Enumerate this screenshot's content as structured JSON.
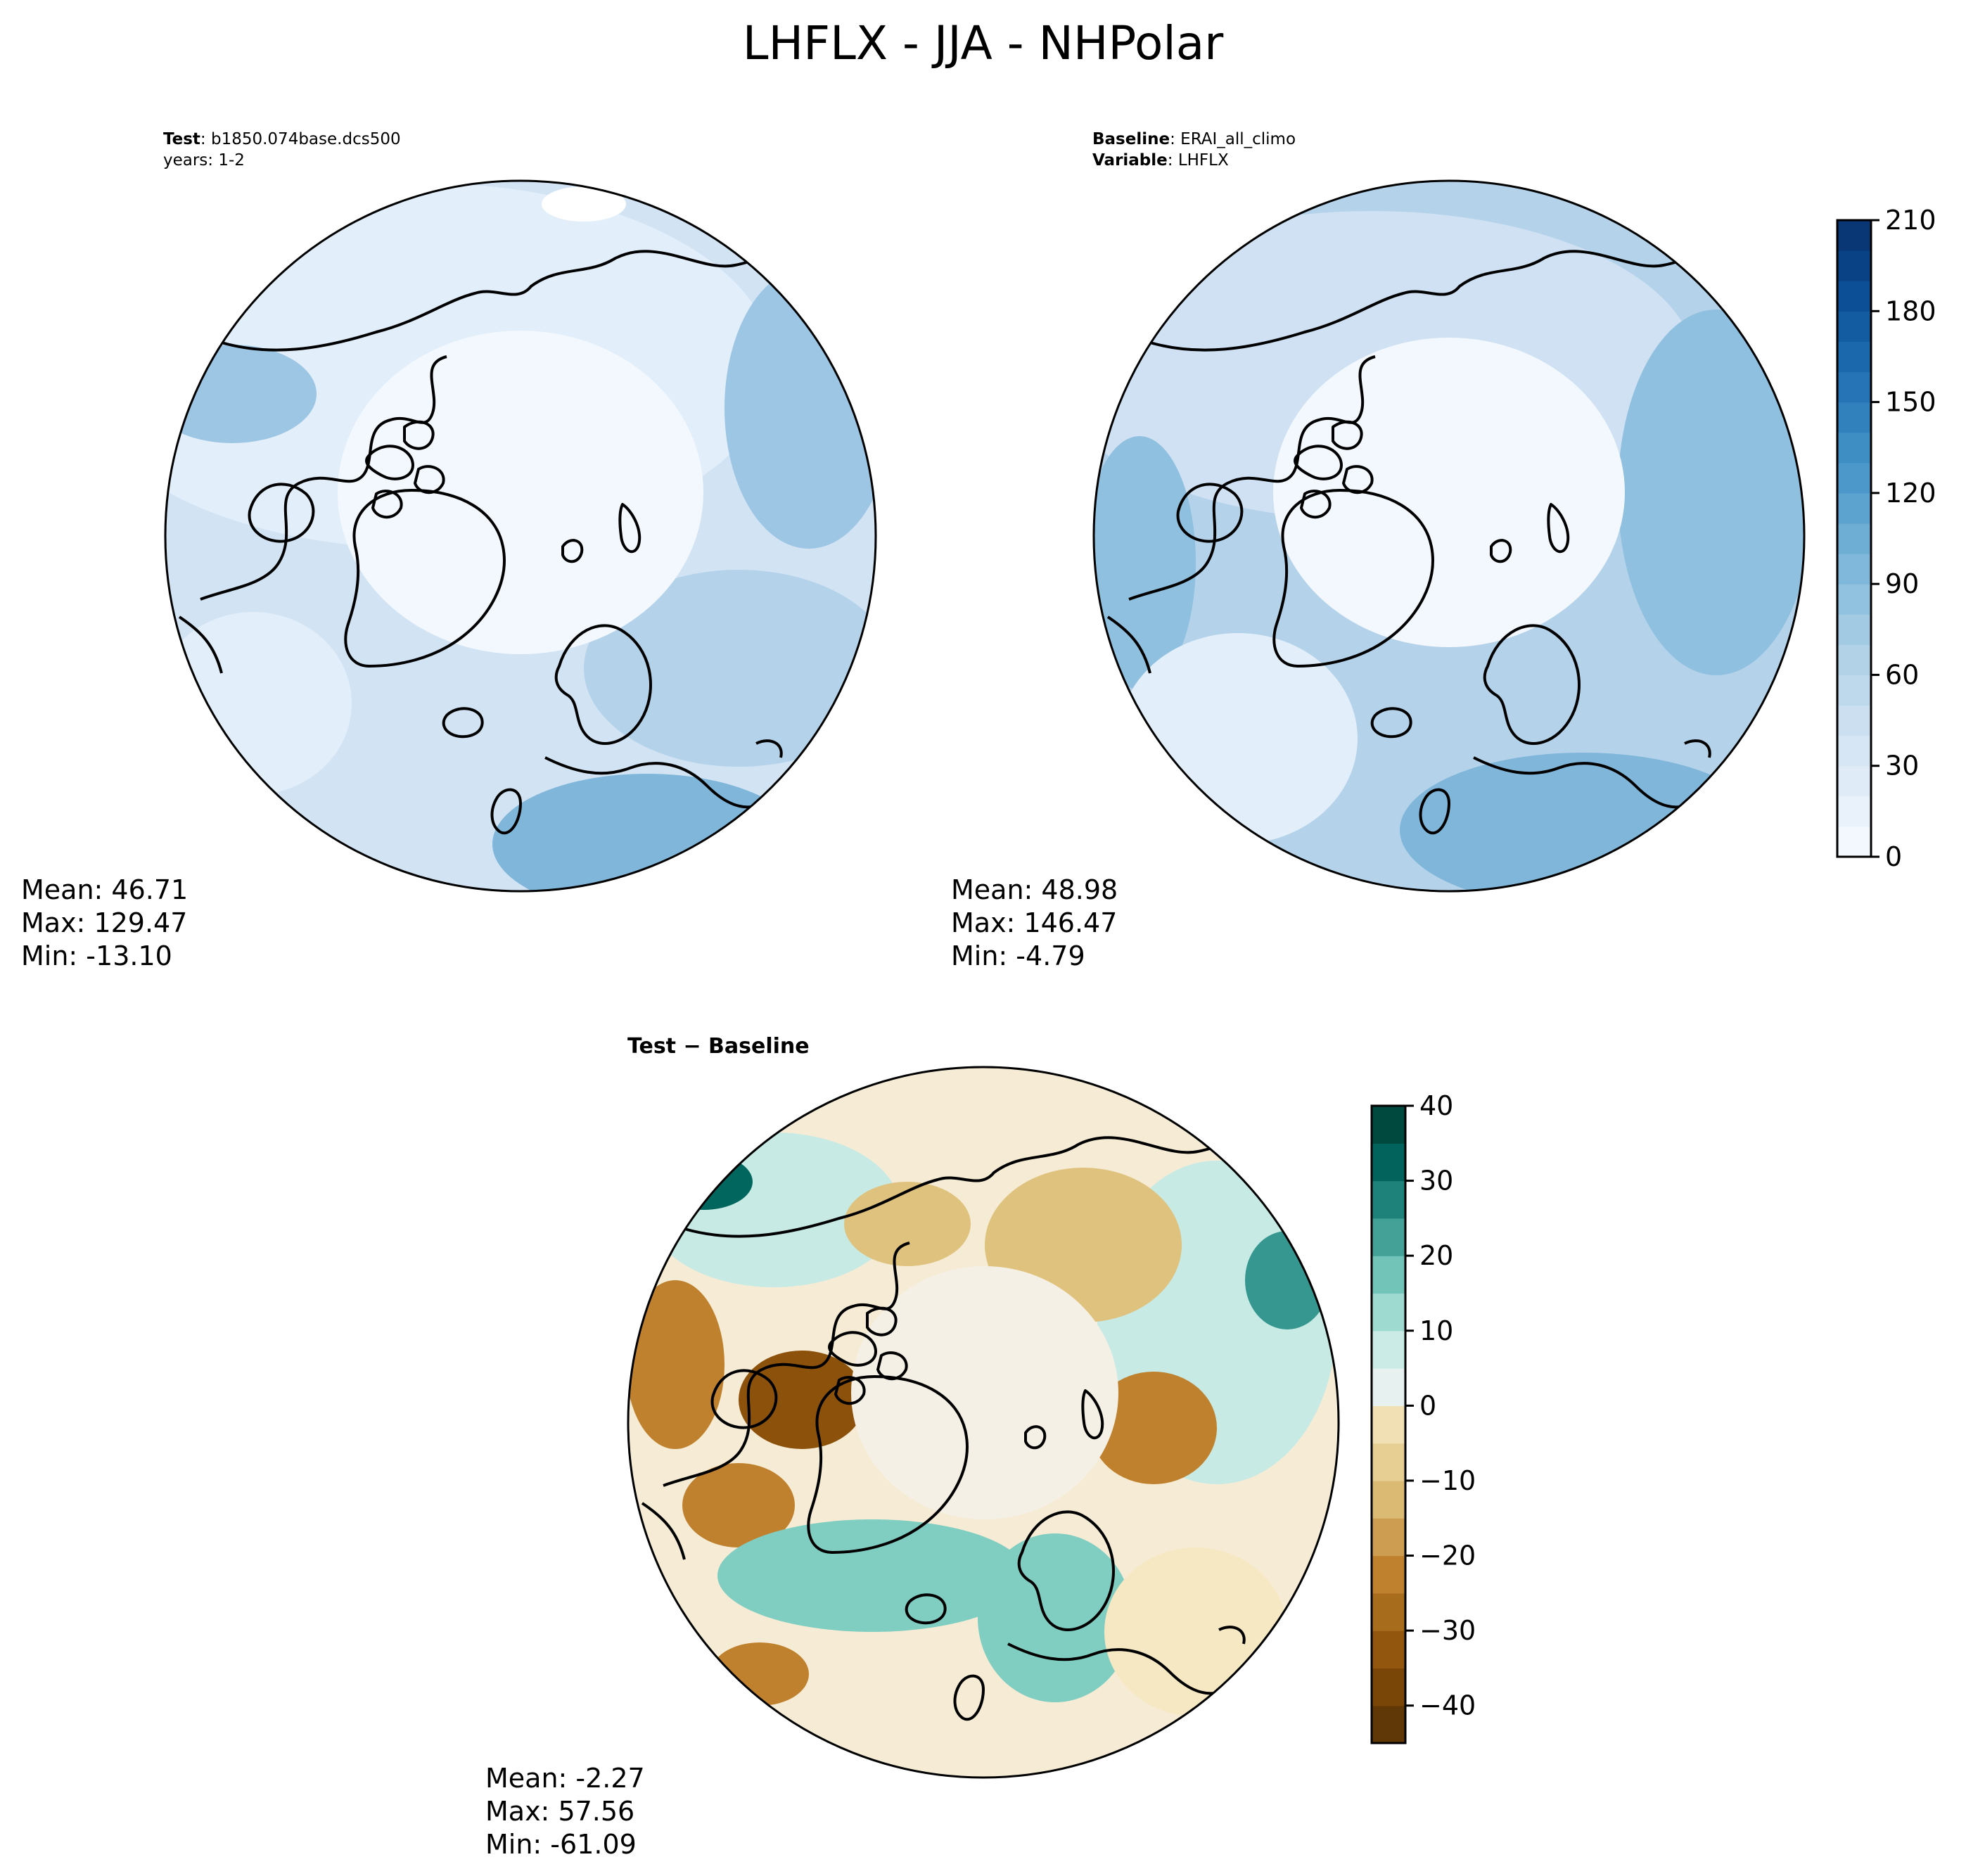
{
  "title": "LHFLX - JJA - NHPolar",
  "panels": {
    "test": {
      "label_key": "Test",
      "label_value": "b1850.074base.dcs500",
      "line2": "years: 1-2",
      "stats": {
        "mean": "Mean: 46.71",
        "max": "Max: 129.47",
        "min": "Min: -13.10"
      }
    },
    "baseline": {
      "label_key": "Baseline",
      "label_value": "ERAI_all_climo",
      "var_key": "Variable",
      "var_value": "LHFLX",
      "stats": {
        "mean": "Mean: 48.98",
        "max": "Max: 146.47",
        "min": "Min: -4.79"
      }
    },
    "diff": {
      "label": "Test − Baseline",
      "stats": {
        "mean": "Mean: -2.27",
        "max": "Max: 57.56",
        "min": "Min: -61.09"
      }
    }
  },
  "colors": {
    "blues": [
      "#f7fbff",
      "#e1edf8",
      "#cadef0",
      "#abcfe5",
      "#82badb",
      "#59a1cf",
      "#3787c0",
      "#1c6aaf",
      "#0b4d94",
      "#08306b"
    ],
    "brbg_neg": [
      "#543005",
      "#8c510a",
      "#bf812d",
      "#dfc27d",
      "#f6e8c3"
    ],
    "brbg_pos": [
      "#f5f5f5",
      "#c7eae5",
      "#80cdc1",
      "#35978f",
      "#01665e",
      "#003c30"
    ]
  },
  "chart_data": [
    {
      "type": "heatmap",
      "map": "polar-stereographic",
      "name": "test",
      "colorbar": null
    },
    {
      "type": "heatmap",
      "map": "polar-stereographic",
      "name": "baseline",
      "colorbar": {
        "min": 0,
        "max": 210,
        "step": 10,
        "ticks": [
          0,
          30,
          60,
          90,
          120,
          150,
          180,
          210
        ],
        "tick_labels": [
          "0",
          "30",
          "60",
          "90",
          "120",
          "150",
          "180",
          "210"
        ]
      }
    },
    {
      "type": "heatmap",
      "map": "polar-stereographic",
      "name": "diff",
      "colorbar": {
        "min": -45,
        "max": 40,
        "step": 5,
        "ticks": [
          -40,
          -30,
          -20,
          -10,
          0,
          10,
          20,
          30,
          40
        ],
        "tick_labels": [
          "−40",
          "−30",
          "−20",
          "−10",
          "0",
          "10",
          "20",
          "30",
          "40"
        ]
      }
    }
  ]
}
